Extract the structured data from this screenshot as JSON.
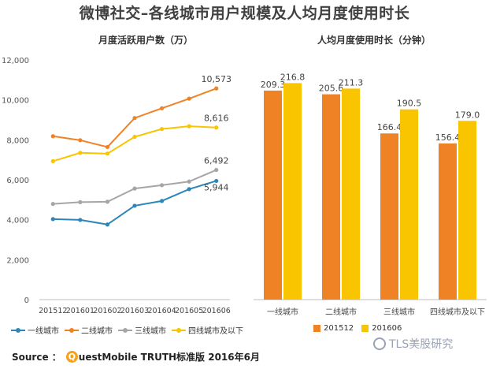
{
  "title": "微博社交–各线城市用户规模及人均月度使用时长",
  "source": {
    "prefix": "Source ：",
    "logo_letter": "Q",
    "text": "uestMobile TRUTH标准版 2016年6月"
  },
  "watermark": "TLS美股研究",
  "colors": {
    "tier1": "#2e86b8",
    "tier2": "#f08226",
    "tier3": "#a6a6a6",
    "tier4": "#f9c400",
    "bar_201512": "#f08226",
    "bar_201606": "#f9c400"
  },
  "chart_data": [
    {
      "type": "line",
      "title": "月度活跃用户数（万）",
      "x": [
        "201512",
        "201601",
        "201602",
        "201603",
        "201604",
        "201605",
        "201606"
      ],
      "ylim": [
        0,
        12000
      ],
      "yticks": [
        "0",
        "2,000",
        "4,000",
        "6,000",
        "8,000",
        "10,000",
        "12,000"
      ],
      "ytick_values": [
        0,
        2000,
        4000,
        6000,
        8000,
        10000,
        12000
      ],
      "legend_position": "bottom",
      "series": [
        {
          "name": "一线城市",
          "values": [
            4030,
            3990,
            3760,
            4700,
            4940,
            5530,
            5944
          ],
          "end_label": "5,944"
        },
        {
          "name": "二线城市",
          "values": [
            8180,
            7980,
            7640,
            9090,
            9580,
            10060,
            10573
          ],
          "end_label": "10,573"
        },
        {
          "name": "三线城市",
          "values": [
            4790,
            4880,
            4900,
            5560,
            5730,
            5910,
            6492
          ],
          "end_label": "6,492"
        },
        {
          "name": "四线城市及以下",
          "values": [
            6930,
            7350,
            7310,
            8150,
            8540,
            8680,
            8616
          ],
          "end_label": "8,616"
        }
      ]
    },
    {
      "type": "bar",
      "title": "人均月度使用时长（分钟）",
      "categories": [
        "一线城市",
        "二线城市",
        "三线城市",
        "四线城市及以下"
      ],
      "ylim": [
        0,
        240
      ],
      "legend_position": "bottom",
      "series": [
        {
          "name": "201512",
          "values": [
            209.3,
            205.6,
            166.4,
            156.4
          ],
          "labels": [
            "209.3",
            "205.6",
            "166.4",
            "156.4"
          ]
        },
        {
          "name": "201606",
          "values": [
            216.8,
            211.3,
            190.5,
            179.0
          ],
          "labels": [
            "216.8",
            "211.3",
            "190.5",
            "179.0"
          ]
        }
      ]
    }
  ]
}
